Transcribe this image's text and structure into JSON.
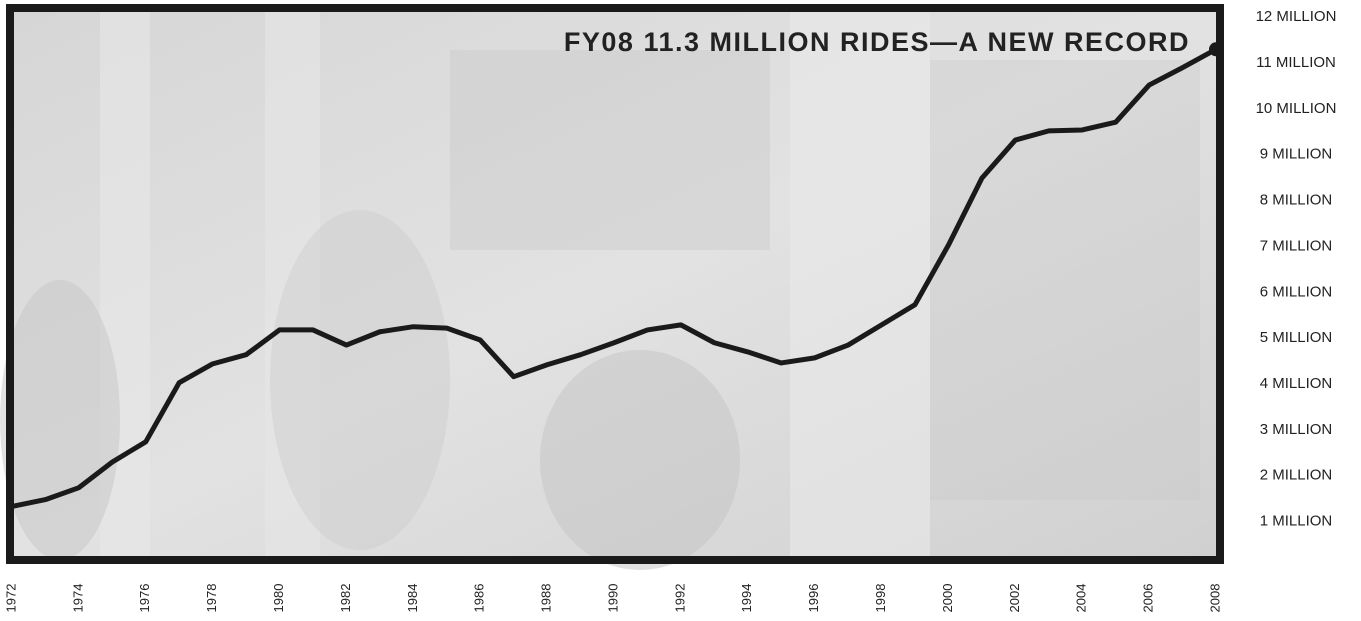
{
  "chart_data": {
    "type": "line",
    "annotation": "FY08 11.3 MILLION RIDES—A NEW RECORD",
    "x": [
      1972,
      1973,
      1974,
      1975,
      1976,
      1977,
      1978,
      1979,
      1980,
      1981,
      1982,
      1983,
      1984,
      1985,
      1986,
      1987,
      1988,
      1989,
      1990,
      1991,
      1992,
      1993,
      1994,
      1995,
      1996,
      1997,
      1998,
      1999,
      2000,
      2001,
      2002,
      2003,
      2004,
      2005,
      2006,
      2007,
      2008
    ],
    "values": [
      1.33,
      1.48,
      1.74,
      2.3,
      2.74,
      4.03,
      4.44,
      4.64,
      5.18,
      5.18,
      4.85,
      5.14,
      5.25,
      5.22,
      4.96,
      4.16,
      4.42,
      4.64,
      4.9,
      5.18,
      5.29,
      4.9,
      4.7,
      4.46,
      4.57,
      4.85,
      5.29,
      5.73,
      7.03,
      8.49,
      9.32,
      9.52,
      9.54,
      9.71,
      10.52,
      10.9,
      11.3
    ],
    "color": "#1a1a1a",
    "xlim": [
      1972,
      2008
    ],
    "ylim": [
      0.25,
      12.2
    ],
    "xticks": [
      1972,
      1974,
      1976,
      1978,
      1980,
      1982,
      1984,
      1986,
      1988,
      1990,
      1992,
      1994,
      1996,
      1998,
      2000,
      2002,
      2004,
      2006,
      2008
    ],
    "yticks": [
      {
        "value": 1,
        "label": "1 MILLION"
      },
      {
        "value": 2,
        "label": "2 MILLION"
      },
      {
        "value": 3,
        "label": "3 MILLION"
      },
      {
        "value": 4,
        "label": "4 MILLION"
      },
      {
        "value": 5,
        "label": "5 MILLION"
      },
      {
        "value": 6,
        "label": "6 MILLION"
      },
      {
        "value": 7,
        "label": "7 MILLION"
      },
      {
        "value": 8,
        "label": "8 MILLION"
      },
      {
        "value": 9,
        "label": "9 MILLION"
      },
      {
        "value": 10,
        "label": "10 MILLION"
      },
      {
        "value": 11,
        "label": "11 MILLION"
      },
      {
        "value": 12,
        "label": "12 MILLION"
      }
    ]
  }
}
